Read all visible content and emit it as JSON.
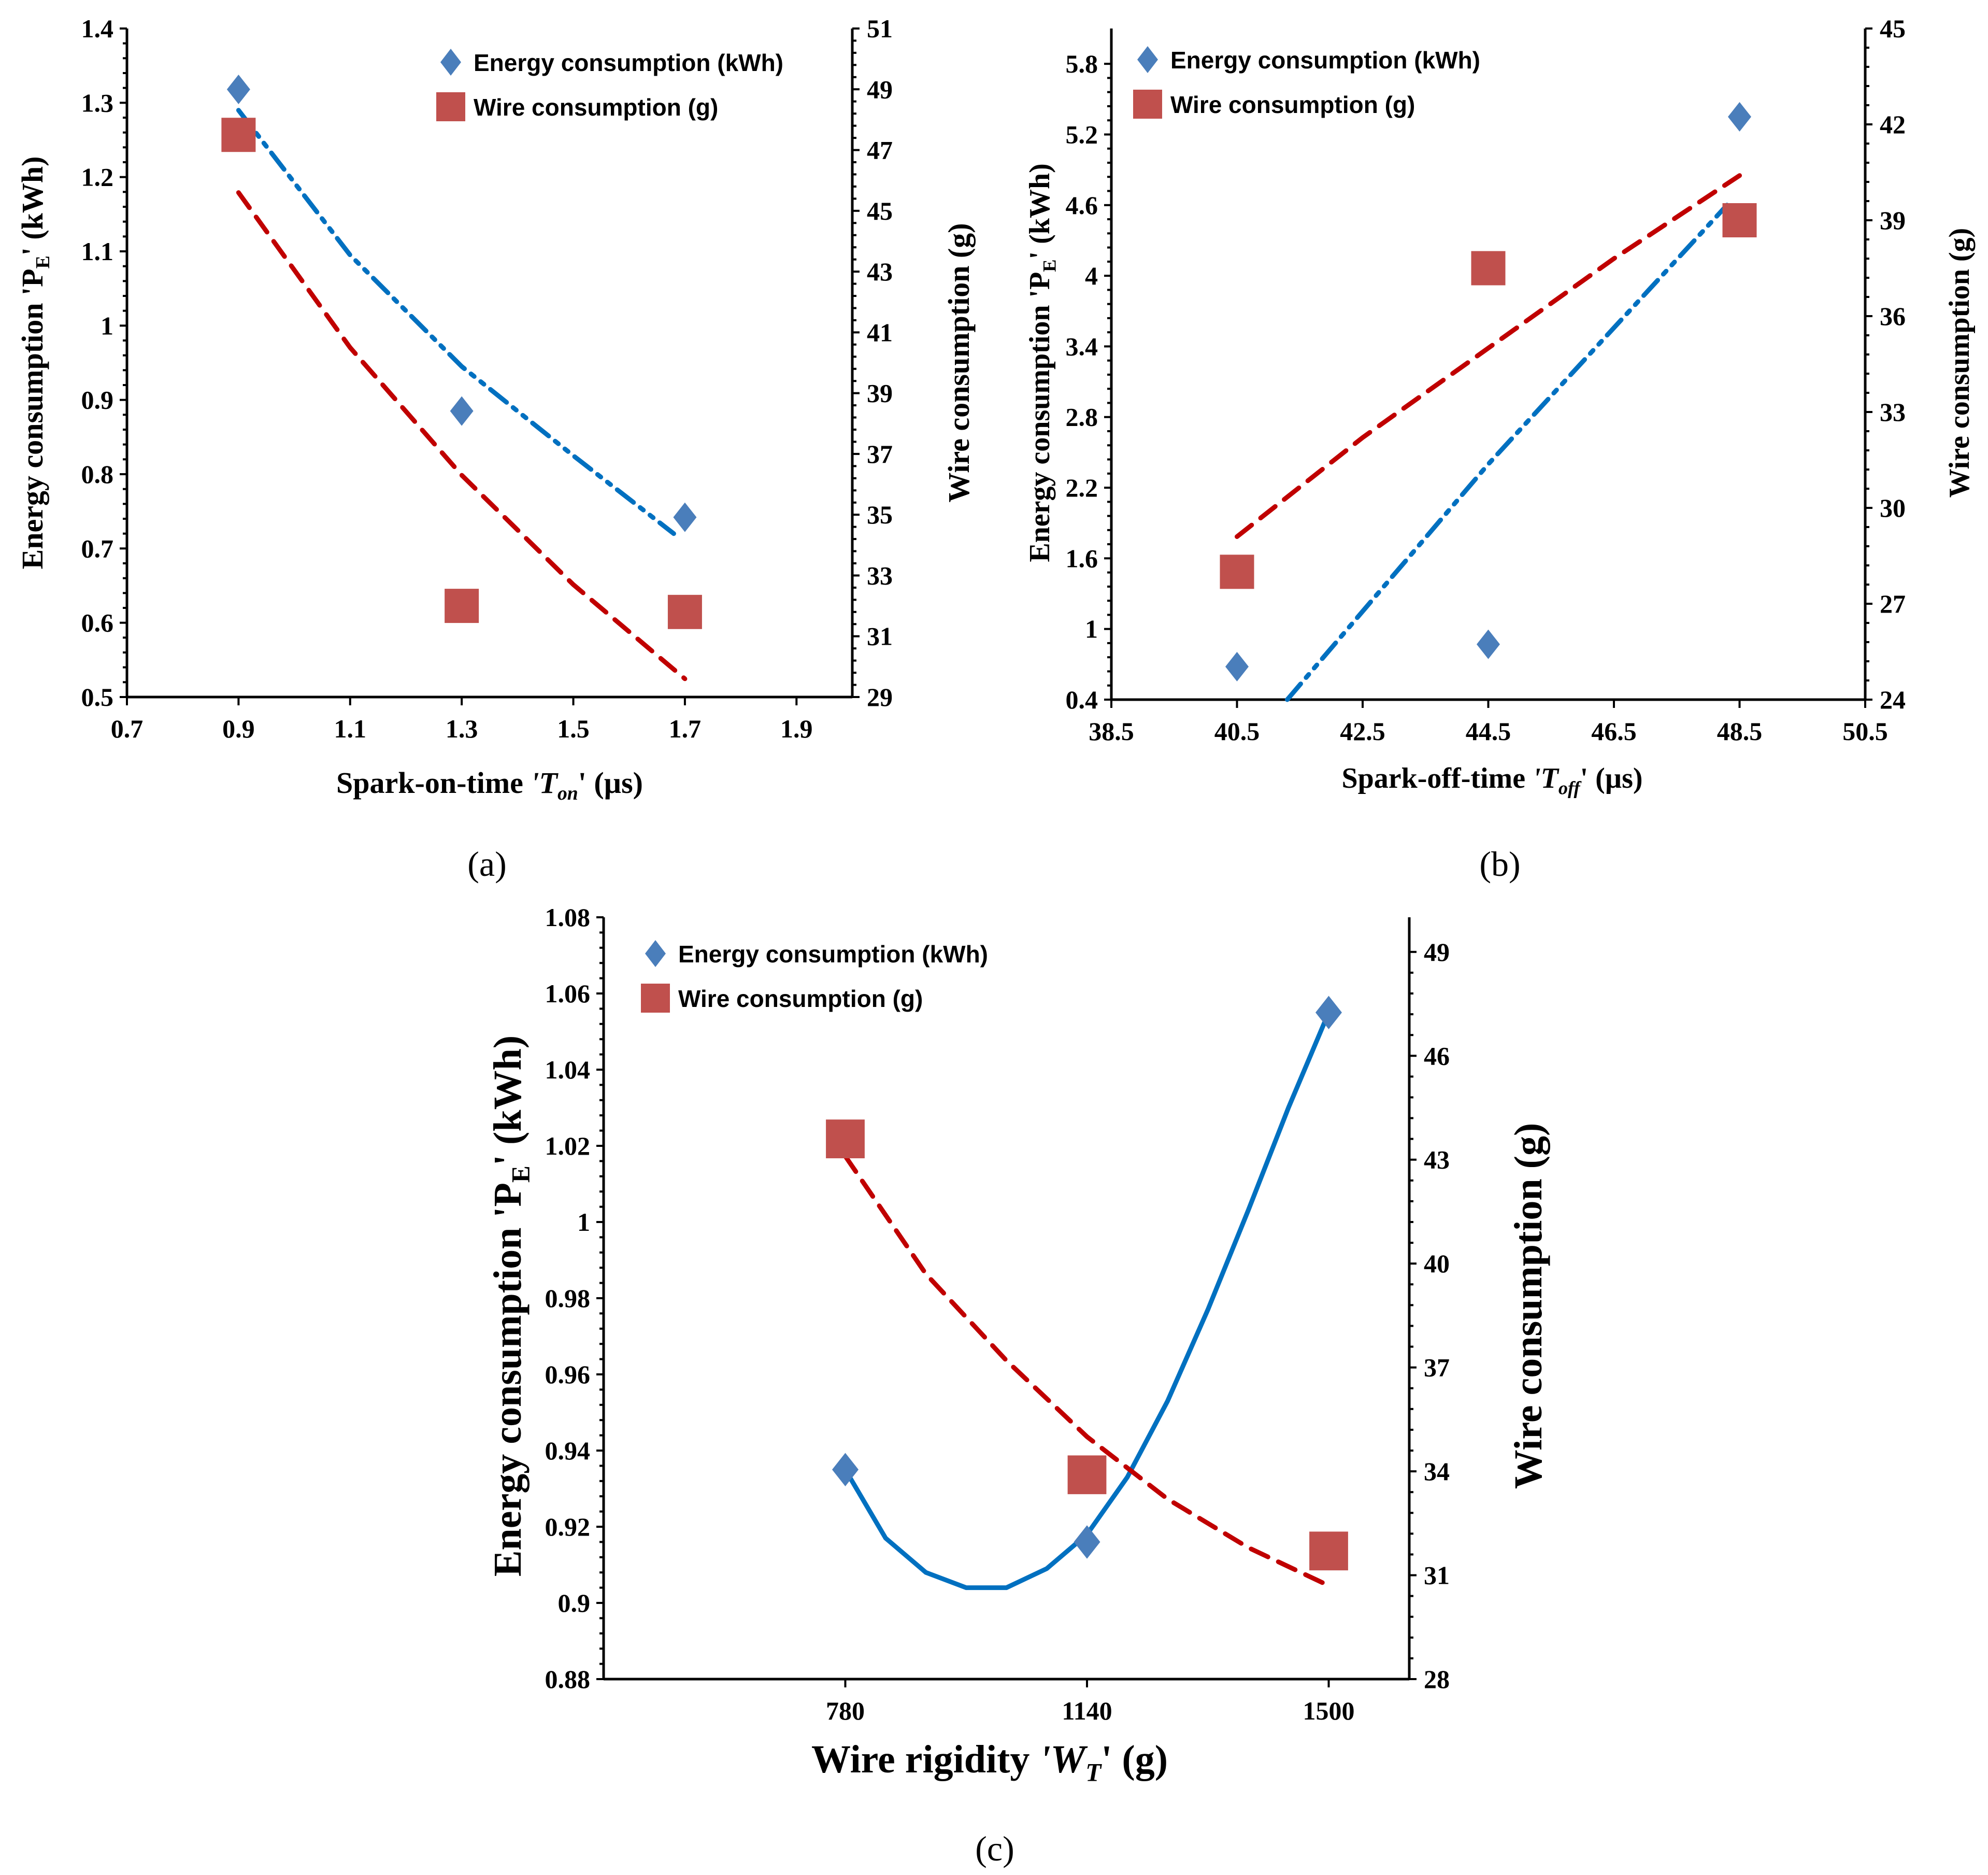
{
  "chart_data": [
    {
      "type": "scatter",
      "panel_label": "(a)",
      "xlabel": {
        "main": "Spark-on-time ",
        "sym": "'T",
        "sub": "on",
        "post": "' (µs)"
      },
      "ylabel": {
        "main": "Energy consumption 'P",
        "sub": "E",
        "post": "' (kWh)"
      },
      "y2label": "Wire consumption (g)",
      "x_ticks": [
        "0.7",
        "0.9",
        "1.1",
        "1.3",
        "1.5",
        "1.7",
        "1.9"
      ],
      "y_ticks": [
        "0.5",
        "0.6",
        "0.7",
        "0.8",
        "0.9",
        "1",
        "1.1",
        "1.2",
        "1.3",
        "1.4"
      ],
      "y2_ticks": [
        "29",
        "31",
        "33",
        "35",
        "37",
        "39",
        "41",
        "43",
        "45",
        "47",
        "49",
        "51"
      ],
      "xlim": [
        0.7,
        2.0
      ],
      "ylim": [
        0.5,
        1.4
      ],
      "y2lim": [
        29,
        51
      ],
      "legend": [
        "Energy consumption (kWh)",
        "Wire consumption (g)"
      ],
      "legend_position": "top-right",
      "series": [
        {
          "name": "Energy consumption (kWh)",
          "axis": "left",
          "marker": "diamond",
          "color": "#4a7ebb",
          "x": [
            0.9,
            1.3,
            1.7
          ],
          "y": [
            1.318,
            0.885,
            0.742
          ],
          "trend": {
            "style": "dashdotdot",
            "color": "#0070c0",
            "points": [
              [
                0.9,
                1.29
              ],
              [
                1.1,
                1.095
              ],
              [
                1.3,
                0.945
              ],
              [
                1.5,
                0.825
              ],
              [
                1.68,
                0.72
              ]
            ]
          }
        },
        {
          "name": "Wire consumption (g)",
          "axis": "right",
          "marker": "square",
          "color": "#c0504d",
          "x": [
            0.9,
            1.3,
            1.7
          ],
          "y": [
            47.5,
            32.0,
            31.8
          ],
          "trend": {
            "style": "dashed",
            "color": "#c00000",
            "points": [
              [
                0.9,
                45.6
              ],
              [
                1.1,
                40.5
              ],
              [
                1.3,
                36.3
              ],
              [
                1.5,
                32.7
              ],
              [
                1.7,
                29.6
              ]
            ]
          }
        }
      ]
    },
    {
      "type": "scatter",
      "panel_label": "(b)",
      "xlabel": {
        "main": "Spark-off-time ",
        "sym": "'T",
        "sub": "off",
        "post": "' (µs)"
      },
      "ylabel": {
        "main": "Energy consumption 'P",
        "sub": "E",
        "post": "' (kWh)"
      },
      "y2label": "Wire consumption (g)",
      "x_ticks": [
        "38.5",
        "40.5",
        "42.5",
        "44.5",
        "46.5",
        "48.5",
        "50.5"
      ],
      "y_ticks": [
        "0.4",
        "1",
        "1.6",
        "2.2",
        "2.8",
        "3.4",
        "4",
        "4.6",
        "5.2",
        "5.8"
      ],
      "y2_ticks": [
        "24",
        "27",
        "30",
        "33",
        "36",
        "39",
        "42",
        "45"
      ],
      "xlim": [
        38.5,
        50.5
      ],
      "ylim": [
        0.4,
        6.1
      ],
      "y2lim": [
        24,
        45
      ],
      "legend": [
        "Energy consumption (kWh)",
        "Wire consumption (g)"
      ],
      "legend_position": "top-left",
      "series": [
        {
          "name": "Energy consumption (kWh)",
          "axis": "left",
          "marker": "diamond",
          "color": "#4a7ebb",
          "x": [
            40.5,
            44.5,
            48.5
          ],
          "y": [
            0.68,
            0.87,
            5.35
          ],
          "trend": {
            "style": "dashdotdot",
            "color": "#0070c0",
            "points": [
              [
                41.3,
                0.4
              ],
              [
                44.5,
                2.4
              ],
              [
                48.3,
                4.6
              ]
            ]
          }
        },
        {
          "name": "Wire consumption (g)",
          "axis": "right",
          "marker": "square",
          "color": "#c0504d",
          "x": [
            40.5,
            44.5,
            48.5
          ],
          "y": [
            28.0,
            37.5,
            39.0
          ],
          "trend": {
            "style": "dashed",
            "color": "#c00000",
            "points": [
              [
                40.5,
                29.1
              ],
              [
                42.5,
                32.2
              ],
              [
                44.5,
                35.0
              ],
              [
                46.5,
                37.8
              ],
              [
                48.5,
                40.4
              ]
            ]
          }
        }
      ]
    },
    {
      "type": "scatter",
      "panel_label": "(c)",
      "xlabel": {
        "main": "Wire rigidity ",
        "sym": "'W",
        "sub": "T",
        "post": "' (g)"
      },
      "ylabel": {
        "main": "Energy consumption 'P",
        "sub": "E",
        "post": "' (kWh)"
      },
      "y2label": "Wire consumption (g)",
      "x_ticks": [
        "780",
        "1140",
        "1500"
      ],
      "y_ticks": [
        "0.88",
        "0.9",
        "0.92",
        "0.94",
        "0.96",
        "0.98",
        "1",
        "1.02",
        "1.04",
        "1.06",
        "1.08"
      ],
      "y2_ticks": [
        "28",
        "31",
        "34",
        "37",
        "40",
        "43",
        "46",
        "49"
      ],
      "xlim": [
        420,
        1620
      ],
      "ylim": [
        0.88,
        1.08
      ],
      "y2lim": [
        28,
        50
      ],
      "legend": [
        "Energy consumption (kWh)",
        "Wire consumption (g)"
      ],
      "legend_position": "top-left",
      "series": [
        {
          "name": "Energy consumption (kWh)",
          "axis": "left",
          "marker": "diamond",
          "color": "#4a7ebb",
          "x": [
            780,
            1140,
            1500
          ],
          "y": [
            0.935,
            0.916,
            1.055
          ],
          "trend": {
            "style": "solid",
            "color": "#0070c0",
            "points": [
              [
                780,
                0.935
              ],
              [
                840,
                0.917
              ],
              [
                900,
                0.908
              ],
              [
                960,
                0.904
              ],
              [
                1020,
                0.904
              ],
              [
                1080,
                0.909
              ],
              [
                1140,
                0.918
              ],
              [
                1200,
                0.933
              ],
              [
                1260,
                0.953
              ],
              [
                1320,
                0.977
              ],
              [
                1380,
                1.003
              ],
              [
                1440,
                1.03
              ],
              [
                1500,
                1.055
              ]
            ]
          }
        },
        {
          "name": "Wire consumption (g)",
          "axis": "right",
          "marker": "square",
          "color": "#c0504d",
          "x": [
            780,
            1140,
            1500
          ],
          "y": [
            43.6,
            33.9,
            31.7
          ],
          "trend": {
            "style": "dashed",
            "color": "#c00000",
            "points": [
              [
                780,
                43.1
              ],
              [
                900,
                39.7
              ],
              [
                1020,
                37.2
              ],
              [
                1140,
                35.0
              ],
              [
                1260,
                33.2
              ],
              [
                1380,
                31.8
              ],
              [
                1500,
                30.7
              ]
            ]
          }
        }
      ]
    }
  ]
}
